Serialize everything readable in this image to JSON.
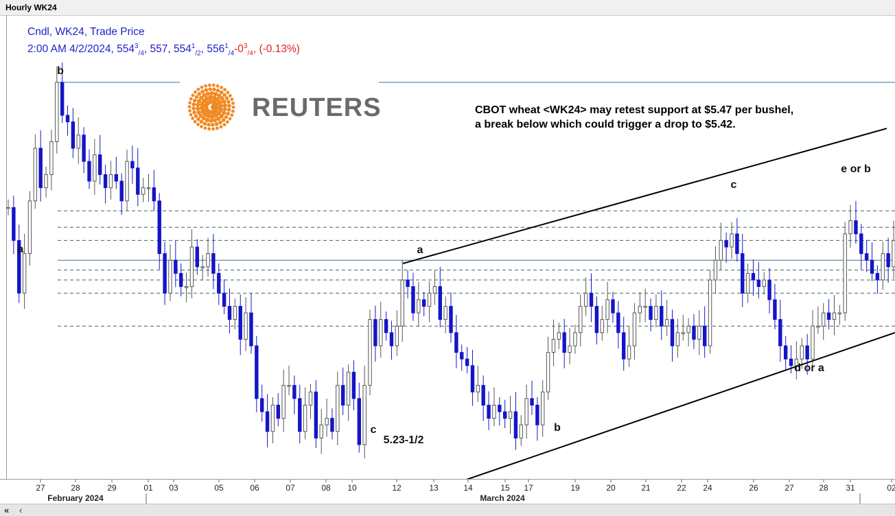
{
  "window": {
    "title": "Hourly WK24"
  },
  "legend": {
    "line1": "Cndl, WK24, Trade Price",
    "line2_prefix": "2:00 AM 4/2/2024, 554",
    "open_frac_num": "3",
    "open_frac_den": "/4",
    "line2_mid1": ", 557, 554",
    "low_frac_num": "1",
    "low_frac_den": "/2",
    "line2_mid2": ", 556",
    "close_frac_num": "1",
    "close_frac_den": "/4",
    "change_prefix": "-0",
    "change_frac_num": "3",
    "change_frac_den": "/4",
    "change_sep": ",",
    "pct_change": "(-0.13%)"
  },
  "logo": {
    "text": "REUTERS",
    "color": "#f08a24"
  },
  "annotation": {
    "line1": "CBOT wheat <WK24> may retest support at $5.47 per bushel,",
    "line2": "a break below which could trigger a drop to $5.42."
  },
  "colors": {
    "up_candle": "#555555",
    "down_candle": "#1515c8",
    "hline_solid": "#3d6f8e",
    "hline_dashed": "#2e6b5a",
    "trendline": "#000000"
  },
  "chart_data": {
    "type": "candlestick",
    "symbol": "WK24",
    "interval": "Hourly",
    "x_tick_labels": [
      "27",
      "28",
      "29",
      "01",
      "03",
      "05",
      "06",
      "07",
      "08",
      "10",
      "12",
      "13",
      "14",
      "15",
      "17",
      "19",
      "20",
      "21",
      "22",
      "24",
      "26",
      "27",
      "28",
      "31",
      "02"
    ],
    "month_labels": [
      "February 2024",
      "March 2024"
    ],
    "key_points": [
      {
        "label": "a",
        "x": "27",
        "price": 5.52
      },
      {
        "label": "b",
        "x": "28",
        "price": 5.84
      },
      {
        "label": "c",
        "x": "10",
        "price": 5.235,
        "note": "5.23-1/2"
      },
      {
        "label": "a",
        "x": "12",
        "price": 5.545
      },
      {
        "label": "b",
        "x": "17",
        "price": 5.31
      },
      {
        "label": "c",
        "x": "24",
        "price": 5.62
      },
      {
        "label": "d or a",
        "x": "27",
        "price": 5.395
      },
      {
        "label": "e or b",
        "x": "28",
        "price": 5.645
      }
    ],
    "horizontal_levels": [
      {
        "price": 5.84,
        "style": "solid"
      },
      {
        "price": 5.645,
        "style": "dashed"
      },
      {
        "price": 5.62,
        "style": "dashed"
      },
      {
        "price": 5.6,
        "style": "dashed"
      },
      {
        "price": 5.57,
        "style": "solid"
      },
      {
        "price": 5.555,
        "style": "dashed"
      },
      {
        "price": 5.54,
        "style": "dashed"
      },
      {
        "price": 5.52,
        "style": "dashed"
      },
      {
        "price": 5.47,
        "style": "dashed"
      }
    ],
    "trendlines": [
      {
        "from": {
          "x": "12",
          "price": 5.565
        },
        "to": {
          "x": "02",
          "price": 5.77
        }
      },
      {
        "from": {
          "x": "13",
          "price": 5.22
        },
        "to": {
          "x": "02",
          "price": 5.46
        }
      }
    ],
    "close_price_series": [
      5.65,
      5.6,
      5.52,
      5.58,
      5.66,
      5.74,
      5.68,
      5.7,
      5.75,
      5.84,
      5.79,
      5.78,
      5.74,
      5.76,
      5.72,
      5.69,
      5.73,
      5.7,
      5.68,
      5.7,
      5.69,
      5.66,
      5.72,
      5.71,
      5.67,
      5.68,
      5.68,
      5.66,
      5.58,
      5.52,
      5.57,
      5.55,
      5.53,
      5.53,
      5.59,
      5.56,
      5.56,
      5.58,
      5.55,
      5.52,
      5.5,
      5.48,
      5.5,
      5.45,
      5.49,
      5.44,
      5.36,
      5.34,
      5.31,
      5.35,
      5.33,
      5.38,
      5.38,
      5.36,
      5.31,
      5.35,
      5.37,
      5.3,
      5.32,
      5.33,
      5.31,
      5.38,
      5.35,
      5.4,
      5.36,
      5.29,
      5.38,
      5.48,
      5.44,
      5.48,
      5.46,
      5.44,
      5.47,
      5.54,
      5.53,
      5.49,
      5.51,
      5.5,
      5.52,
      5.53,
      5.48,
      5.5,
      5.46,
      5.43,
      5.42,
      5.41,
      5.37,
      5.38,
      5.35,
      5.33,
      5.35,
      5.34,
      5.33,
      5.34,
      5.3,
      5.32,
      5.36,
      5.35,
      5.32,
      5.37,
      5.43,
      5.45,
      5.46,
      5.43,
      5.44,
      5.46,
      5.5,
      5.52,
      5.5,
      5.46,
      5.48,
      5.51,
      5.49,
      5.46,
      5.42,
      5.44,
      5.49,
      5.5,
      5.5,
      5.48,
      5.5,
      5.47,
      5.48,
      5.44,
      5.46,
      5.46,
      5.47,
      5.45,
      5.47,
      5.44,
      5.54,
      5.57,
      5.6,
      5.59,
      5.61,
      5.58,
      5.52,
      5.55,
      5.54,
      5.53,
      5.54,
      5.51,
      5.48,
      5.44,
      5.42,
      5.41,
      5.42,
      5.44,
      5.42,
      5.47,
      5.47,
      5.49,
      5.48,
      5.49,
      5.49,
      5.61,
      5.63,
      5.61,
      5.58,
      5.57,
      5.55,
      5.54,
      5.58,
      5.56,
      5.6
    ]
  }
}
